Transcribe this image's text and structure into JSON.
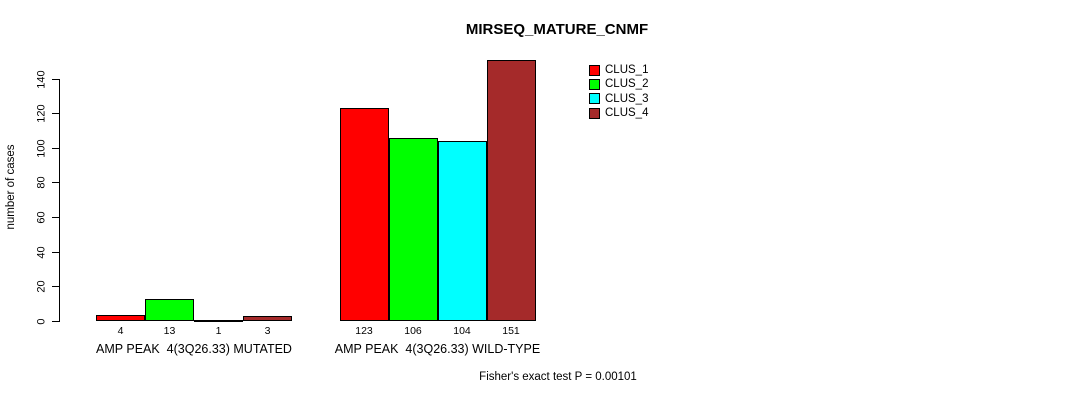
{
  "chart_data": {
    "type": "bar",
    "title": "MIRSEQ_MATURE_CNMF",
    "ylabel": "number of cases",
    "xlabel": "",
    "categories": [
      "AMP PEAK  4(3Q26.33) MUTATED",
      "AMP PEAK  4(3Q26.33) WILD-TYPE"
    ],
    "series": [
      {
        "name": "CLUS_1",
        "color": "#FF0000",
        "values": [
          4,
          123
        ]
      },
      {
        "name": "CLUS_2",
        "color": "#00FF00",
        "values": [
          13,
          106
        ]
      },
      {
        "name": "CLUS_3",
        "color": "#00FFFF",
        "values": [
          1,
          104
        ]
      },
      {
        "name": "CLUS_4",
        "color": "#A52A2A",
        "values": [
          3,
          151
        ]
      }
    ],
    "yticks": [
      0,
      20,
      40,
      60,
      80,
      100,
      120,
      140
    ],
    "ylim": [
      0,
      140
    ],
    "grid": false,
    "legend_position": "top-right",
    "annotation": "Fisher's exact test P = 0.00101"
  }
}
